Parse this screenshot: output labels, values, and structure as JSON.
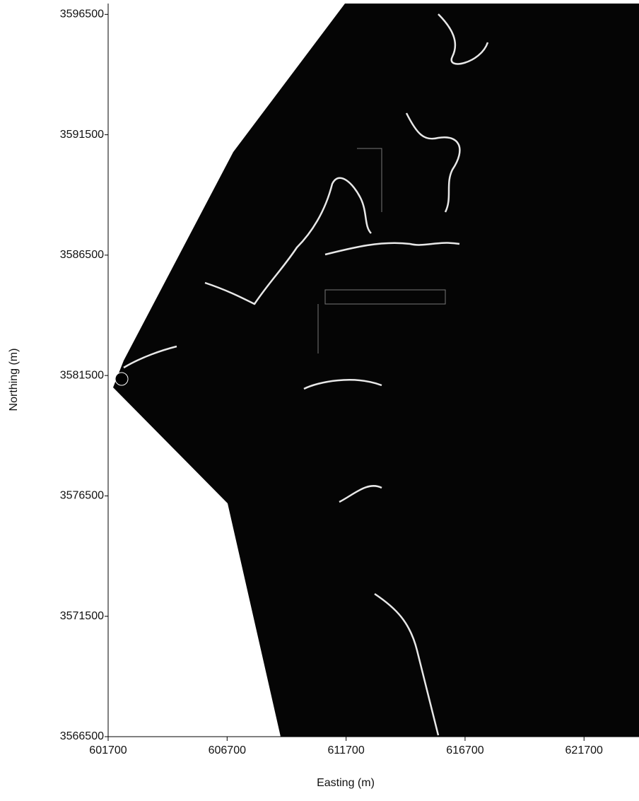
{
  "map": {
    "x_axis": {
      "label": "Easting (m)",
      "lim": [
        601700,
        624010
      ],
      "ticks": [
        601700,
        606700,
        611700,
        616700,
        621700
      ]
    },
    "y_axis": {
      "label": "Northing (m)",
      "lim": [
        3566500,
        3596950
      ],
      "ticks": [
        3566500,
        3571500,
        3576500,
        3581500,
        3586500,
        3591500,
        3596500
      ]
    }
  }
}
